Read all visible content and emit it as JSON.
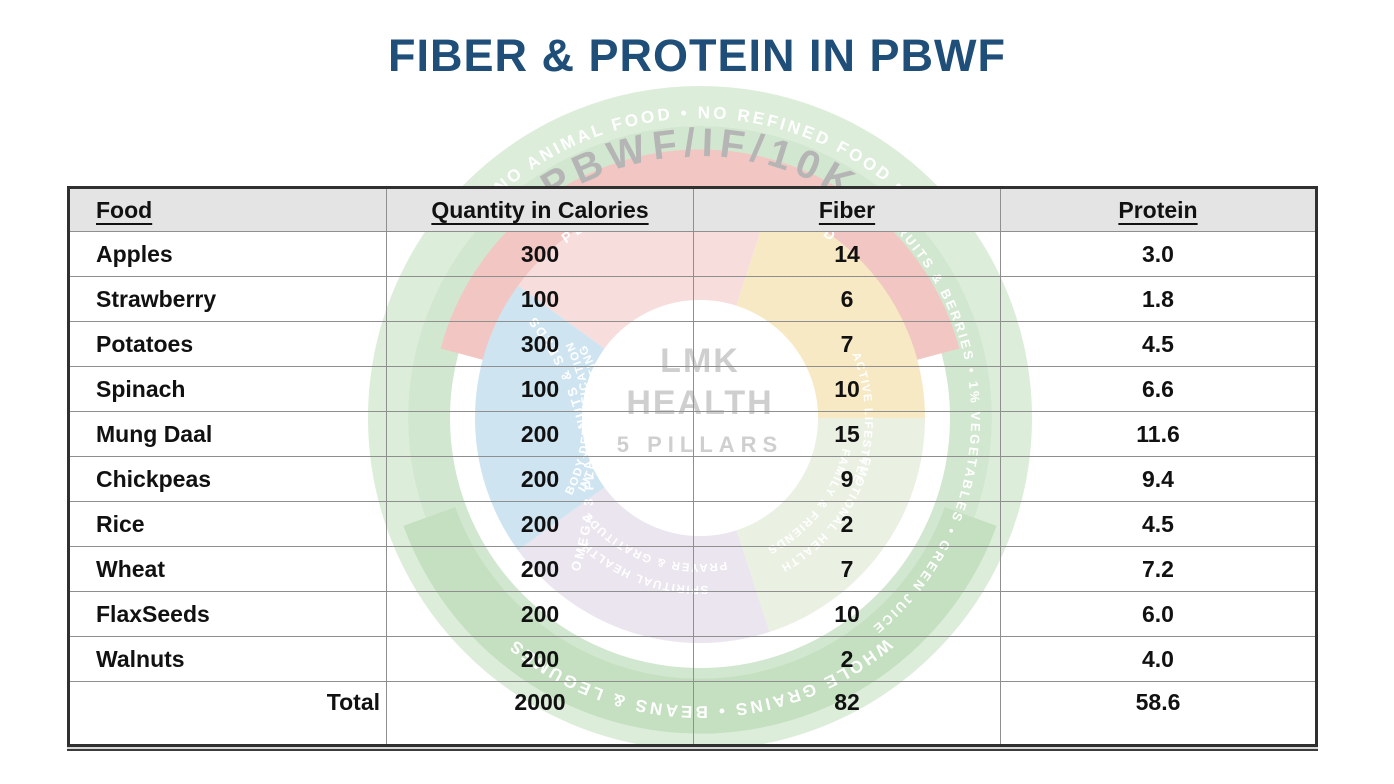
{
  "page": {
    "title": "FIBER & PROTEIN IN PBWF",
    "title_color": "#1f4e79",
    "background_color": "#ffffff"
  },
  "table": {
    "header_bg": "#e4e4e4",
    "columns": [
      "Food",
      "Quantity in Calories",
      "Fiber",
      "Protein"
    ],
    "column_keys": [
      "food",
      "calories",
      "fiber",
      "protein"
    ],
    "rows": [
      {
        "food": "Apples",
        "calories": "300",
        "fiber": "14",
        "protein": "3.0"
      },
      {
        "food": "Strawberry",
        "calories": "100",
        "fiber": "6",
        "protein": "1.8"
      },
      {
        "food": "Potatoes",
        "calories": "300",
        "fiber": "7",
        "protein": "4.5"
      },
      {
        "food": "Spinach",
        "calories": "100",
        "fiber": "10",
        "protein": "6.6"
      },
      {
        "food": "Mung Daal",
        "calories": "200",
        "fiber": "15",
        "protein": "11.6"
      },
      {
        "food": "Chickpeas",
        "calories": "200",
        "fiber": "9",
        "protein": "9.4"
      },
      {
        "food": "Rice",
        "calories": "200",
        "fiber": "2",
        "protein": "4.5"
      },
      {
        "food": "Wheat",
        "calories": "200",
        "fiber": "7",
        "protein": "7.2"
      },
      {
        "food": "FlaxSeeds",
        "calories": "200",
        "fiber": "10",
        "protein": "6.0"
      },
      {
        "food": "Walnuts",
        "calories": "200",
        "fiber": "2",
        "protein": "4.0"
      }
    ],
    "total": {
      "label": "Total",
      "calories": "2000",
      "fiber": "82",
      "protein": "58.6"
    }
  },
  "watermark": {
    "brand_arc_text": "PBWF/IF/10K",
    "outer_ring_top_text": "NO ANIMAL FOOD • NO REFINED FOOD •",
    "outer_ring_bottom_text": "WHOLE GRAINS • BEANS & LEGUMES",
    "red_ring_text": "PLANT BASED WHOLE FOOD",
    "items_ring_left_text": "OMEGA 3 FLAX • NUTS & SEEDS",
    "items_ring_right_text": "FRUITS & BERRIES • 1% VEGETABLES • GREEN JUICE",
    "center_line1": "LMK",
    "center_line2": "HEALTH",
    "center_line3": "5 PILLARS",
    "sector_labels": {
      "blue_line1": "BODY DETOXIFICATION",
      "blue_line2": "INT & WATER FASTING",
      "yellow": "ACTIVE LIFESTYLE",
      "lavender_line1": "SPIRITUAL HEALTH",
      "lavender_line2": "PRAYER & GRATITUDE",
      "green_line1": "EMOTIONAL HEALTH",
      "green_line2": "FAMILY & FRIENDS"
    },
    "colors": {
      "outer_band": "#dcedda",
      "items_band": "#d2e7cf",
      "bottom_band": "#c4e0c0",
      "red_band": "#f2c6c2",
      "sector_pink": "#f7dedd",
      "sector_yellow": "#f7e9c4",
      "sector_green": "#eaf1e3",
      "sector_lavender": "#eae5ee",
      "sector_blue": "#cfe4f1",
      "center_text": "#cfcfcf",
      "brand_text": "#b5b5b5"
    }
  }
}
